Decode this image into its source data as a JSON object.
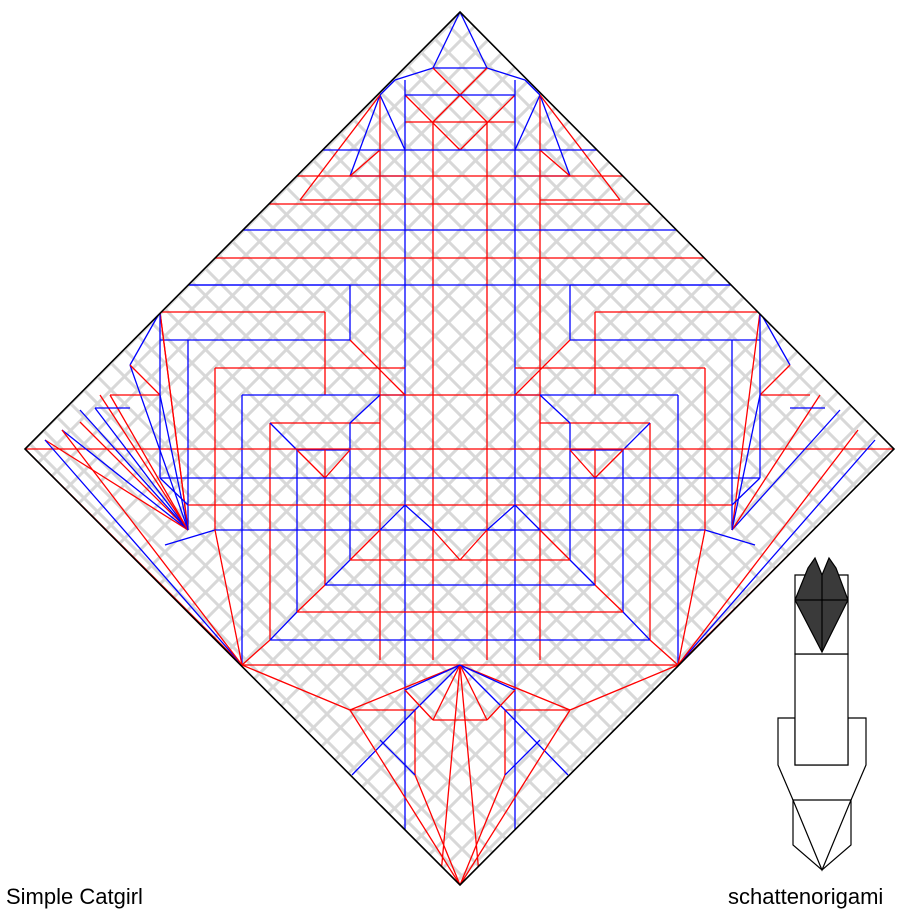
{
  "labels": {
    "model_name": "Simple Catgirl",
    "author": "schattenorigami"
  },
  "colors": {
    "mountain": "#ff0000",
    "valley": "#0000ff",
    "border": "#000000",
    "hinge": "#d8d8d8",
    "model_fill": "#3a3a3a"
  }
}
